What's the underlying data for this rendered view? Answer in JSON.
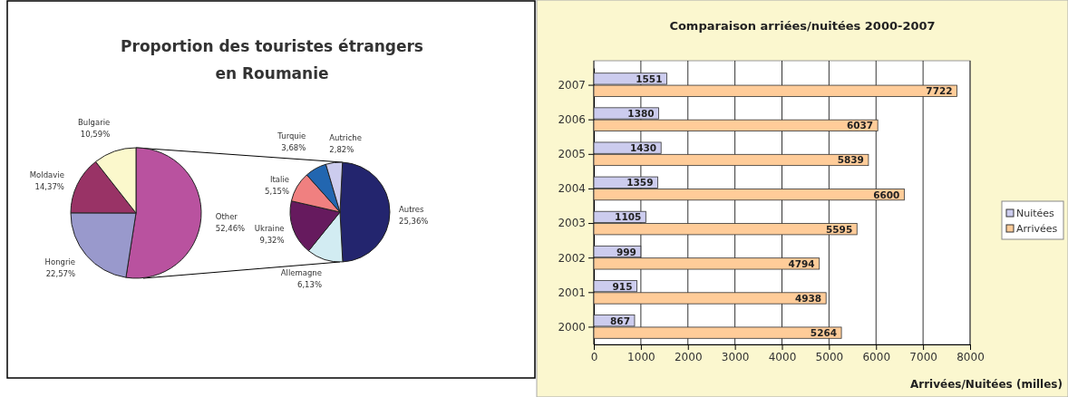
{
  "chart_data": [
    {
      "type": "pie",
      "title": "Proportion des touristes étrangers en Roumanie",
      "categories": [
        "Other",
        "Hongrie",
        "Moldavie",
        "Bulgarie"
      ],
      "values": [
        52.46,
        22.57,
        14.37,
        10.59
      ],
      "colors": [
        "#b9529f",
        "#9999cc",
        "#993366",
        "#fbf8cc"
      ],
      "value_labels": [
        "52,46%",
        "22,57%",
        "14,37%",
        "10,59%"
      ]
    },
    {
      "type": "pie",
      "categories": [
        "Autres",
        "Allemagne",
        "Ukraine",
        "Italie",
        "Turquie",
        "Autriche"
      ],
      "values": [
        25.36,
        6.13,
        9.32,
        5.15,
        3.68,
        2.82
      ],
      "colors": [
        "#23256e",
        "#d2ecf2",
        "#661a5e",
        "#f08080",
        "#2266b0",
        "#ccccee"
      ],
      "value_labels": [
        "25,36%",
        "6,13%",
        "9,32%",
        "5,15%",
        "3,68%",
        "2,82%"
      ]
    },
    {
      "type": "bar",
      "orientation": "horizontal",
      "title": "Comparaison arriées/nuitées 2000-2007",
      "xlabel": "Arrivées/Nuitées (milles)",
      "categories": [
        "2007",
        "2006",
        "2005",
        "2004",
        "2003",
        "2002",
        "2001",
        "2000"
      ],
      "series": [
        {
          "name": "Nuitées",
          "color": "#ccccee",
          "values": [
            1551,
            1380,
            1430,
            1359,
            1105,
            999,
            915,
            867
          ]
        },
        {
          "name": "Arrivées",
          "color": "#ffcc99",
          "values": [
            7722,
            6037,
            5839,
            6600,
            5595,
            4794,
            4938,
            5264
          ]
        }
      ],
      "xlim": [
        0,
        8000
      ],
      "xticks": [
        0,
        1000,
        2000,
        3000,
        4000,
        5000,
        6000,
        7000,
        8000
      ],
      "grid": "x",
      "legend": "right",
      "data_labels": true
    }
  ]
}
